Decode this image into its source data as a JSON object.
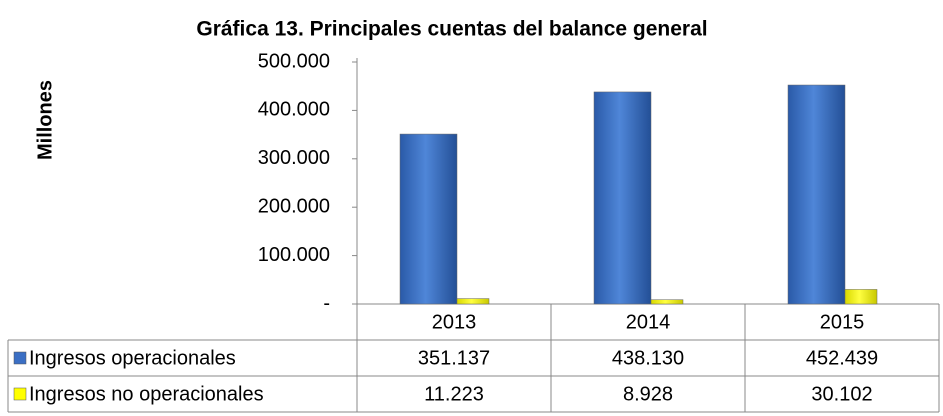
{
  "chart_data": {
    "type": "bar",
    "title": "Gráfica 13. Principales cuentas del balance general",
    "y_label": "Millones",
    "categories": [
      "2013",
      "2014",
      "2015"
    ],
    "series": [
      {
        "name": "Ingresos operacionales",
        "color": "#3b6fc4",
        "values": [
          351137,
          438130,
          452439
        ],
        "value_labels": [
          "351.137",
          "438.130",
          "452.439"
        ]
      },
      {
        "name": "Ingresos no operacionales",
        "color": "#ffff00",
        "values": [
          11223,
          8928,
          30102
        ],
        "value_labels": [
          "11.223",
          "8.928",
          "30.102"
        ]
      }
    ],
    "ylim": [
      0,
      500000
    ],
    "yticks": [
      {
        "value": 0,
        "label": "-"
      },
      {
        "value": 100000,
        "label": "100.000"
      },
      {
        "value": 200000,
        "label": "200.000"
      },
      {
        "value": 300000,
        "label": "300.000"
      },
      {
        "value": 400000,
        "label": "400.000"
      },
      {
        "value": 500000,
        "label": "500.000"
      }
    ]
  }
}
